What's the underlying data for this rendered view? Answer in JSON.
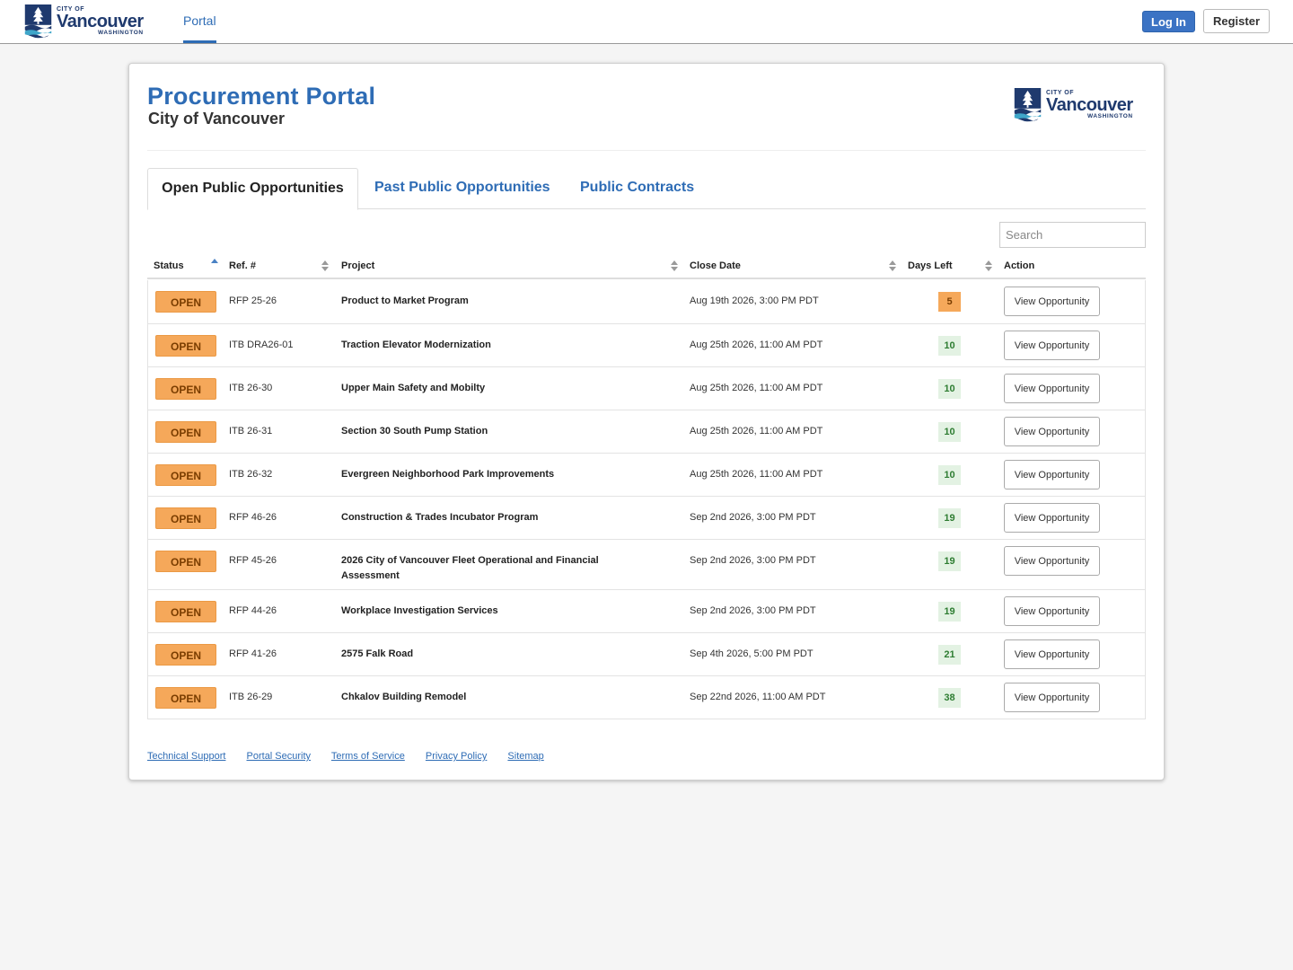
{
  "brand": {
    "city_of": "CITY OF",
    "name": "Vancouver",
    "state": "WASHINGTON"
  },
  "nav": {
    "portal": "Portal",
    "login": "Log In",
    "register": "Register"
  },
  "page": {
    "title": "Procurement Portal",
    "subtitle": "City of Vancouver"
  },
  "tabs": [
    "Open Public Opportunities",
    "Past Public Opportunities",
    "Public Contracts"
  ],
  "search": {
    "placeholder": "Search"
  },
  "columns": [
    "Status",
    "Ref. #",
    "Project",
    "Close Date",
    "Days Left",
    "Action"
  ],
  "rows": [
    {
      "status": "OPEN",
      "ref": "RFP 25-26",
      "project": "Product to Market Program",
      "close": "Aug 19th 2026, 3:00 PM PDT",
      "days": "5",
      "action": "View Opportunity"
    },
    {
      "status": "OPEN",
      "ref": "ITB DRA26-01",
      "project": "Traction Elevator Modernization",
      "close": "Aug 25th 2026, 11:00 AM PDT",
      "days": "10",
      "action": "View Opportunity"
    },
    {
      "status": "OPEN",
      "ref": "ITB 26-30",
      "project": "Upper Main Safety and Mobilty",
      "close": "Aug 25th 2026, 11:00 AM PDT",
      "days": "10",
      "action": "View Opportunity"
    },
    {
      "status": "OPEN",
      "ref": "ITB 26-31",
      "project": "Section 30 South Pump Station",
      "close": "Aug 25th 2026, 11:00 AM PDT",
      "days": "10",
      "action": "View Opportunity"
    },
    {
      "status": "OPEN",
      "ref": "ITB 26-32",
      "project": "Evergreen Neighborhood Park Improvements",
      "close": "Aug 25th 2026, 11:00 AM PDT",
      "days": "10",
      "action": "View Opportunity"
    },
    {
      "status": "OPEN",
      "ref": "RFP 46-26",
      "project": "Construction & Trades Incubator Program",
      "close": "Sep 2nd 2026, 3:00 PM PDT",
      "days": "19",
      "action": "View Opportunity"
    },
    {
      "status": "OPEN",
      "ref": "RFP 45-26",
      "project": "2026 City of Vancouver Fleet Operational and Financial Assessment",
      "close": "Sep 2nd 2026, 3:00 PM PDT",
      "days": "19",
      "action": "View Opportunity"
    },
    {
      "status": "OPEN",
      "ref": "RFP 44-26",
      "project": "Workplace Investigation Services",
      "close": "Sep 2nd 2026, 3:00 PM PDT",
      "days": "19",
      "action": "View Opportunity"
    },
    {
      "status": "OPEN",
      "ref": "RFP 41-26",
      "project": "2575 Falk Road",
      "close": "Sep 4th 2026, 5:00 PM PDT",
      "days": "21",
      "action": "View Opportunity"
    },
    {
      "status": "OPEN",
      "ref": "ITB 26-29",
      "project": "Chkalov Building Remodel",
      "close": "Sep 22nd 2026, 11:00 AM PDT",
      "days": "38",
      "action": "View Opportunity"
    }
  ],
  "footer": [
    "Technical Support",
    "Portal Security",
    "Terms of Service",
    "Privacy Policy",
    "Sitemap"
  ],
  "colors": {
    "accent": "#2e6cb5",
    "open_badge": "#f5a85a",
    "days_ok": "#e3f2e3",
    "brand_navy": "#1f3a6e"
  }
}
